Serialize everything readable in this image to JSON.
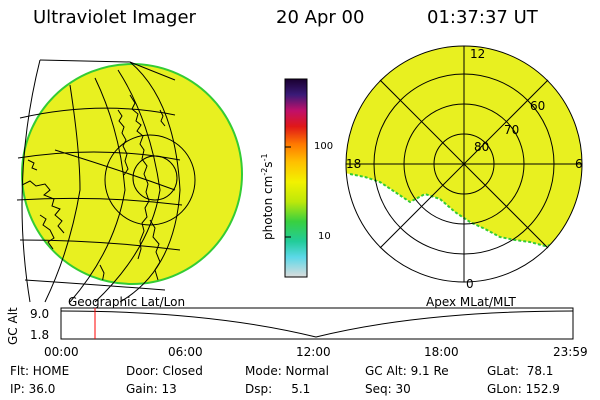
{
  "header": {
    "instrument": "Ultraviolet Imager",
    "date": "20 Apr 00",
    "time": "01:37:37 UT"
  },
  "colorbar": {
    "unit_label": "photon cm",
    "unit_exp1": "-2",
    "unit_mid": "s",
    "unit_exp2": "-1",
    "ticks": [
      "100",
      "10"
    ],
    "scale": "log"
  },
  "polar_plot": {
    "mlt_labels": [
      "12",
      "18",
      "6",
      "0"
    ],
    "mlat_labels": [
      "60",
      "70",
      "80"
    ]
  },
  "timeline": {
    "left_title": "Geographic Lat/Lon",
    "right_title": "Apex MLat/MLT",
    "axis_label": "GC Alt",
    "y_ticks": [
      "9.0",
      "1.8"
    ],
    "x_ticks": [
      "00:00",
      "06:00",
      "12:00",
      "18:00",
      "23:59"
    ],
    "current_time_marker": "01:37"
  },
  "status": {
    "row1": {
      "filter": "Flt: HOME",
      "door": "Door: Closed",
      "mode": "Mode: Normal",
      "gc_alt": "GC Alt: 9.1 Re",
      "glat": "GLat:  78.1"
    },
    "row2": {
      "ip": "IP: 36.0",
      "gain": "Gain: 13",
      "dsp": "Dsp:     5.1",
      "seq": "Seq: 30",
      "glon": "GLon: 152.9"
    }
  },
  "colors": {
    "image_fill": "#e8f020",
    "image_edge": "#34cc34",
    "marker": "#ff0000"
  }
}
